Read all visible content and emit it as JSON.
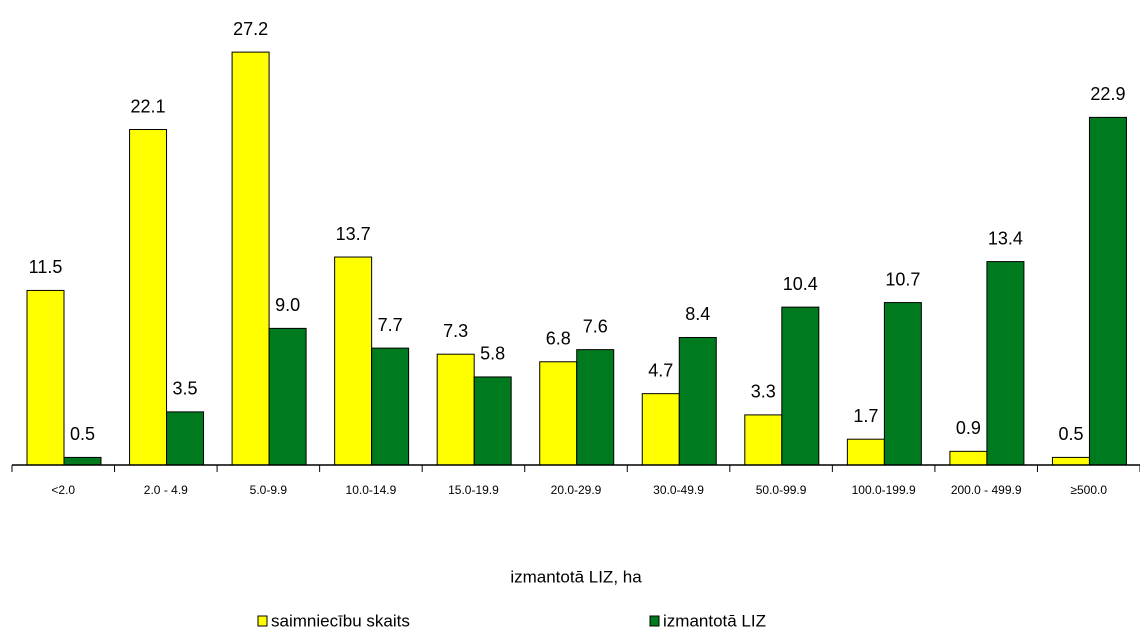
{
  "chart_data": {
    "type": "bar",
    "x_label": "izmantotā LIZ, ha",
    "categories": [
      "<2.0",
      "2.0 - 4.9",
      "5.0-9.9",
      "10.0-14.9",
      "15.0-19.9",
      "20.0-29.9",
      "30.0-49.9",
      "50.0-99.9",
      "100.0-199.9",
      "200.0 - 499.9",
      "≥500.0"
    ],
    "series": [
      {
        "name": "saimniecību skaits",
        "color": "#ffff00",
        "values": [
          11.5,
          22.1,
          27.2,
          13.7,
          7.3,
          6.8,
          4.7,
          3.3,
          1.7,
          0.9,
          0.5
        ],
        "value_labels": [
          "11.5",
          "22.1",
          "27.2",
          "13.7",
          "7.3",
          "6.8",
          "4.7",
          "3.3",
          "1.7",
          "0.9",
          "0.5"
        ]
      },
      {
        "name": "izmantotā LIZ",
        "color": "#007a1e",
        "values": [
          0.5,
          3.5,
          9.0,
          7.7,
          5.8,
          7.6,
          8.4,
          10.4,
          10.7,
          13.4,
          22.9
        ],
        "value_labels": [
          "0.5",
          "3.5",
          "9.0",
          "7.7",
          "5.8",
          "7.6",
          "8.4",
          "10.4",
          "10.7",
          "13.4",
          "22.9"
        ]
      }
    ]
  }
}
